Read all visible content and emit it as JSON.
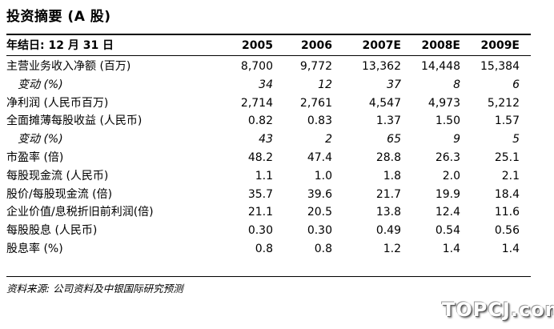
{
  "title": "投资摘要 (A 股)",
  "header": {
    "label": "年结日: 12 月 31 日",
    "years": [
      "2005",
      "2006",
      "2007E",
      "2008E",
      "2009E"
    ]
  },
  "rows": [
    {
      "label": "主营业务收入净额 (百万)",
      "italic": false,
      "values": [
        "8,700",
        "9,772",
        "13,362",
        "14,448",
        "15,384"
      ]
    },
    {
      "label": "变动 (%)",
      "italic": true,
      "values": [
        "34",
        "12",
        "37",
        "8",
        "6"
      ]
    },
    {
      "label": "净利润 (人民币百万)",
      "italic": false,
      "values": [
        "2,714",
        "2,761",
        "4,547",
        "4,973",
        "5,212"
      ]
    },
    {
      "label": "全面摊薄每股收益 (人民币)",
      "italic": false,
      "values": [
        "0.82",
        "0.83",
        "1.37",
        "1.50",
        "1.57"
      ]
    },
    {
      "label": "变动 (%)",
      "italic": true,
      "values": [
        "43",
        "2",
        "65",
        "9",
        "5"
      ]
    },
    {
      "label": "市盈率 (倍)",
      "italic": false,
      "values": [
        "48.2",
        "47.4",
        "28.8",
        "26.3",
        "25.1"
      ]
    },
    {
      "label": "每股现金流 (人民币)",
      "italic": false,
      "values": [
        "1.1",
        "1.0",
        "1.8",
        "2.0",
        "2.1"
      ]
    },
    {
      "label": "股价/每股现金流 (倍)",
      "italic": false,
      "values": [
        "35.7",
        "39.6",
        "21.7",
        "19.9",
        "18.4"
      ]
    },
    {
      "label": "企业价值/息税折旧前利润(倍)",
      "italic": false,
      "values": [
        "21.1",
        "20.5",
        "13.8",
        "12.4",
        "11.6"
      ]
    },
    {
      "label": "每股股息 (人民币)",
      "italic": false,
      "values": [
        "0.30",
        "0.30",
        "0.49",
        "0.54",
        "0.56"
      ]
    },
    {
      "label": "股息率 (%)",
      "italic": false,
      "values": [
        "0.8",
        "0.8",
        "1.2",
        "1.4",
        "1.4"
      ]
    }
  ],
  "source": "资料来源: 公司资料及中银国际研究预测",
  "watermark": "TOPCJ.com"
}
